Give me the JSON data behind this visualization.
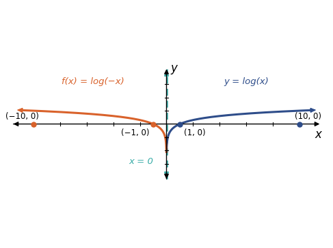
{
  "xlim": [
    -12,
    12
  ],
  "ylim": [
    -4.5,
    4.5
  ],
  "x_ticks": [
    -10,
    -8,
    -6,
    -4,
    -2,
    2,
    4,
    6,
    8,
    10
  ],
  "y_ticks": [
    -3,
    -2,
    -1,
    1,
    2,
    3
  ],
  "color_log": "#2e4d8a",
  "color_neg_log": "#d9622b",
  "color_asymptote": "#3aada8",
  "label_log": "y = log(x)",
  "label_neg_log": "f(x) = log(−x)",
  "label_asymptote": "x = 0",
  "background_color": "#ffffff",
  "figsize": [
    4.87,
    3.63
  ],
  "dpi": 100
}
